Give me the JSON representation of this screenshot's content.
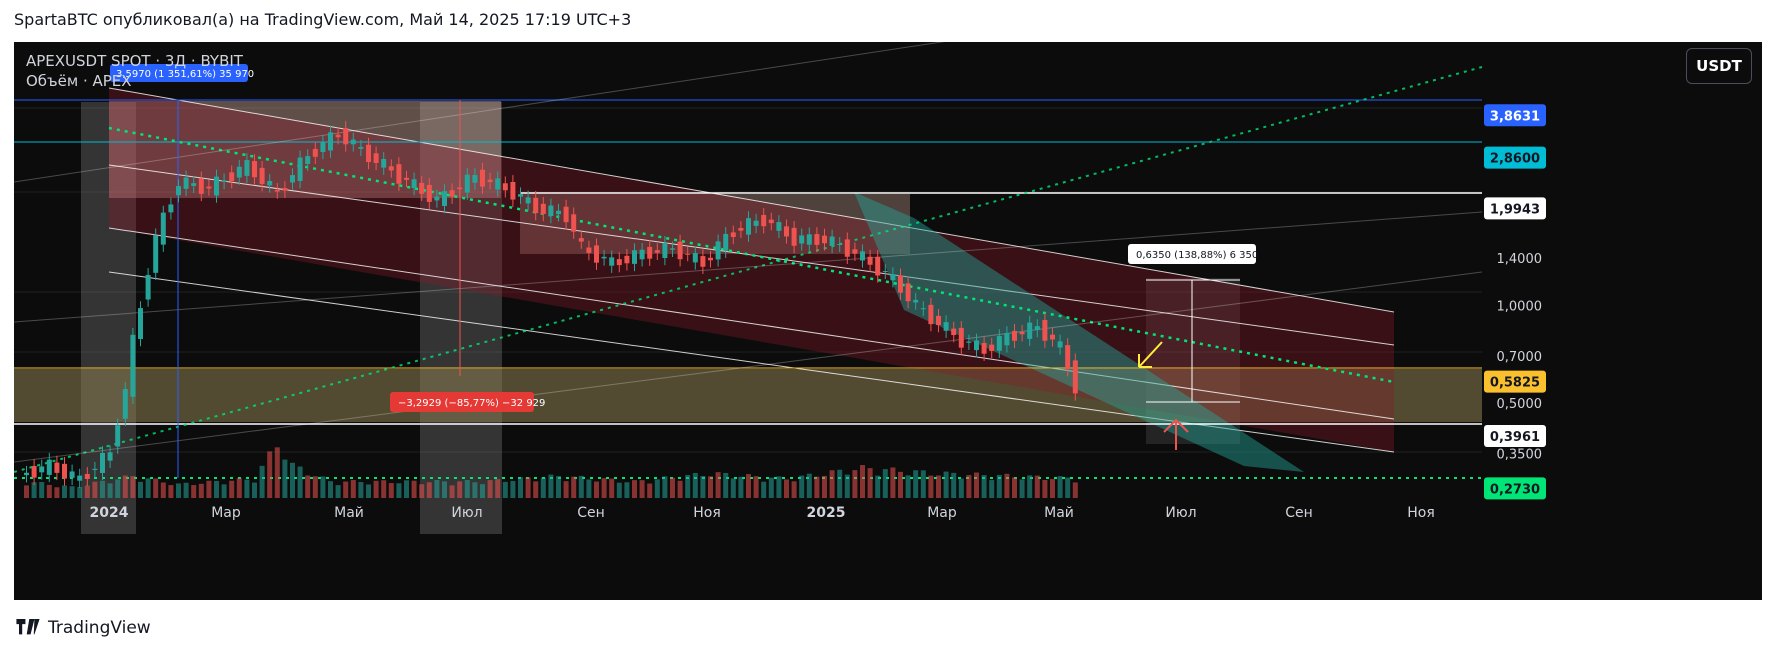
{
  "header": {
    "publisher_line": "SpartaBTC опубликовал(а) на TradingView.com, Май 14, 2025 17:19 UTC+3"
  },
  "legend": {
    "symbol_line": "APEXUSDT SPOT · 3Д · BYBIT",
    "volume_line": "Объём · APEX"
  },
  "currency_button": "USDT",
  "footer": {
    "brand": "TradingView"
  },
  "colors": {
    "up": "#26a69a",
    "down": "#ef5350",
    "bg": "#0c0c0c",
    "level_blue": "#2962ff",
    "level_cyan": "#00bcd4",
    "green_dots": "#00e676"
  },
  "chart_data": {
    "type": "candlestick",
    "scale": "log",
    "ylim": [
      0.255,
      6.5
    ],
    "x_ticks": [
      "2024",
      "Мар",
      "Май",
      "Июл",
      "Сен",
      "Ноя",
      "2025",
      "Мар",
      "Май",
      "Июл",
      "Сен",
      "Ноя"
    ],
    "y_ticks": [
      "2,8600",
      "1,4000",
      "1,0000",
      "0,7000",
      "0,5000",
      "0,3500"
    ],
    "price_labels": [
      {
        "text": "3,8631",
        "value": 3.8631,
        "color": "#2962ff"
      },
      {
        "text": "2,8600",
        "value": 2.86,
        "color": "#00bcd4"
      },
      {
        "text": "1,9943",
        "value": 1.9943,
        "color": "#ffffff"
      },
      {
        "text": "0,5825",
        "value": 0.5825,
        "color": "#fbc02d"
      },
      {
        "text": "0,3961",
        "value": 0.3961,
        "color": "#ffffff"
      },
      {
        "text": "0,2730",
        "value": 0.273,
        "color": "#00e676"
      }
    ],
    "measure_labels": [
      {
        "text": "3,5970 (1 351,61%) 35 970"
      },
      {
        "text": "−3,2929 (−85,77%) −32 929"
      },
      {
        "text": "0,6350 (138,88%) 6 350"
      }
    ],
    "price_path": [
      [
        0,
        0.3
      ],
      [
        4,
        0.32
      ],
      [
        8,
        0.29
      ],
      [
        12,
        0.35
      ],
      [
        14,
        0.55
      ],
      [
        16,
        1.0
      ],
      [
        18,
        1.6
      ],
      [
        21,
        2.4
      ],
      [
        25,
        2.3
      ],
      [
        30,
        2.7
      ],
      [
        34,
        2.2
      ],
      [
        38,
        2.9
      ],
      [
        42,
        3.4
      ],
      [
        45,
        3.0
      ],
      [
        50,
        2.5
      ],
      [
        55,
        2.1
      ],
      [
        60,
        2.5
      ],
      [
        64,
        2.3
      ],
      [
        68,
        2.0
      ],
      [
        72,
        1.9
      ],
      [
        74,
        1.5
      ],
      [
        78,
        1.35
      ],
      [
        82,
        1.45
      ],
      [
        86,
        1.5
      ],
      [
        90,
        1.35
      ],
      [
        94,
        1.7
      ],
      [
        98,
        1.85
      ],
      [
        102,
        1.6
      ],
      [
        106,
        1.6
      ],
      [
        110,
        1.45
      ],
      [
        113,
        1.3
      ],
      [
        115,
        1.2
      ],
      [
        118,
        1.0
      ],
      [
        121,
        0.88
      ],
      [
        124,
        0.78
      ],
      [
        127,
        0.73
      ],
      [
        130,
        0.8
      ],
      [
        134,
        0.86
      ],
      [
        137,
        0.74
      ],
      [
        139,
        0.56
      ]
    ],
    "volume_bars": [
      [
        0,
        0.3
      ],
      [
        6,
        0.2
      ],
      [
        14,
        0.4
      ],
      [
        20,
        0.25
      ],
      [
        30,
        0.35
      ],
      [
        33,
        1.0
      ],
      [
        35,
        0.6
      ],
      [
        40,
        0.3
      ],
      [
        50,
        0.3
      ],
      [
        60,
        0.3
      ],
      [
        70,
        0.4
      ],
      [
        80,
        0.3
      ],
      [
        90,
        0.45
      ],
      [
        100,
        0.35
      ],
      [
        110,
        0.55
      ],
      [
        120,
        0.45
      ],
      [
        130,
        0.4
      ],
      [
        139,
        0.35
      ]
    ]
  }
}
